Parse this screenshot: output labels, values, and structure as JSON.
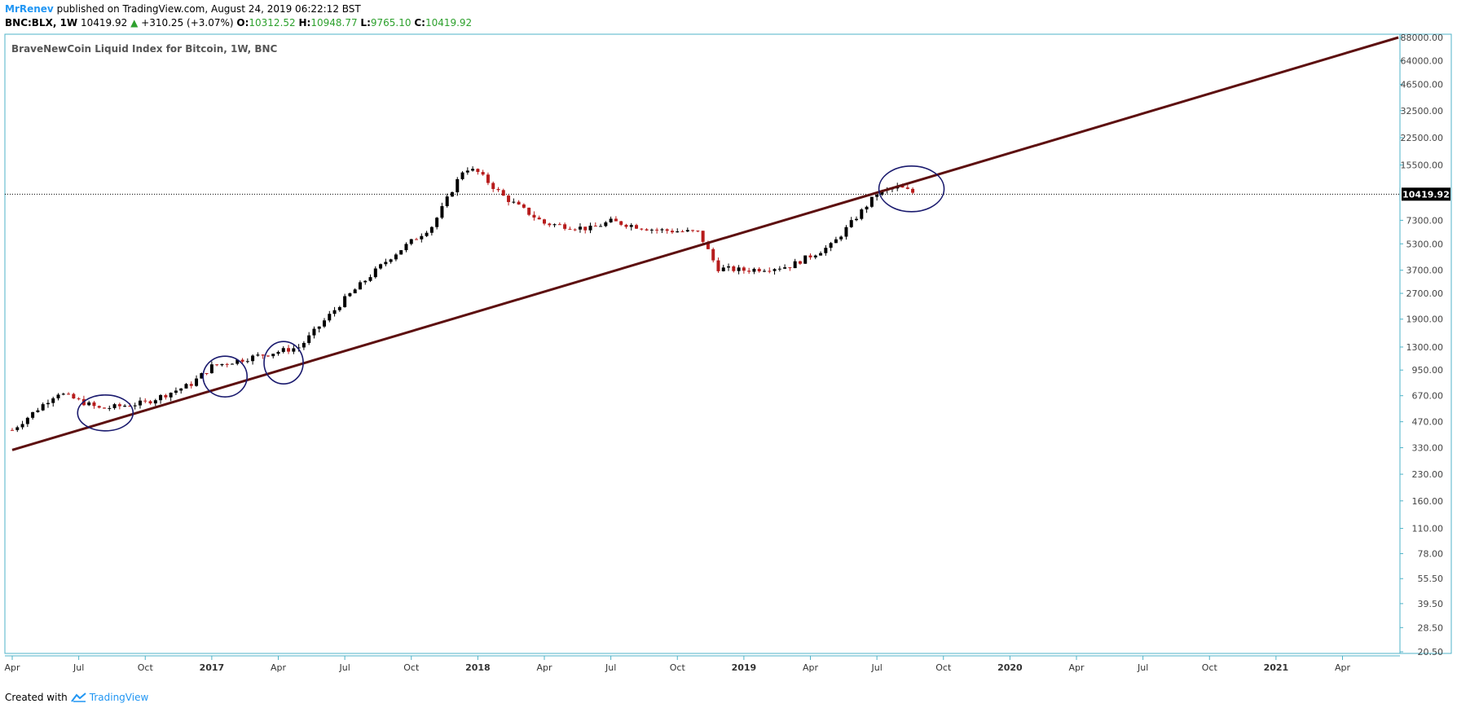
{
  "header": {
    "author": "MrRenev",
    "published": "published on TradingView.com, August 24, 2019 06:22:12 BST",
    "symbol": "BNC:BLX, 1W",
    "last": "10419.92",
    "change": "+310.25 (+3.07%)",
    "o_label": "O:",
    "o_value": "10312.52",
    "h_label": "H:",
    "h_value": "10948.77",
    "l_label": "L:",
    "l_value": "9765.10",
    "c_label": "C:",
    "c_value": "10419.92"
  },
  "footer": {
    "created_with": "Created with",
    "brand": "TradingView"
  },
  "colors": {
    "up": "#000000",
    "down": "#b71c1c",
    "trendline": "#5d0f0f",
    "ellipse": "#1a1a6e",
    "frame": "#4fb3c8",
    "accent": "#2196f3"
  },
  "chart_data": {
    "type": "candlestick",
    "title": "BraveNewCoin Liquid Index for Bitcoin, 1W, BNC",
    "y_scale": "log",
    "last_price_label": "10419.92",
    "y_ticks": [
      "88000.00",
      "64000.00",
      "46500.00",
      "32500.00",
      "22500.00",
      "15500.00",
      "7300.00",
      "5300.00",
      "3700.00",
      "2700.00",
      "1900.00",
      "1300.00",
      "950.00",
      "670.00",
      "470.00",
      "330.00",
      "230.00",
      "160.00",
      "110.00",
      "78.00",
      "55.50",
      "39.50",
      "28.50",
      "20.50"
    ],
    "x_ticks": [
      "Apr",
      "Jul",
      "Oct",
      "2017",
      "Apr",
      "Jul",
      "Oct",
      "2018",
      "Apr",
      "Jul",
      "Oct",
      "2019",
      "Apr",
      "Jul",
      "Oct",
      "2020",
      "Apr",
      "Jul",
      "Oct",
      "2021",
      "Apr"
    ],
    "x_bold_ticks": [
      "2017",
      "2018",
      "2019",
      "2020",
      "2021"
    ],
    "series_path": [
      [
        2016.25,
        420
      ],
      [
        2016.42,
        700
      ],
      [
        2016.58,
        560
      ],
      [
        2016.75,
        610
      ],
      [
        2016.92,
        780
      ],
      [
        2017.0,
        1000
      ],
      [
        2017.17,
        1150
      ],
      [
        2017.33,
        1300
      ],
      [
        2017.5,
        2500
      ],
      [
        2017.67,
        4400
      ],
      [
        2017.83,
        6800
      ],
      [
        2017.95,
        15000
      ],
      [
        2018.0,
        14000
      ],
      [
        2018.1,
        10000
      ],
      [
        2018.25,
        7000
      ],
      [
        2018.42,
        6500
      ],
      [
        2018.5,
        7200
      ],
      [
        2018.67,
        6400
      ],
      [
        2018.83,
        6200
      ],
      [
        2018.9,
        3800
      ],
      [
        2019.0,
        3700
      ],
      [
        2019.17,
        3900
      ],
      [
        2019.33,
        5200
      ],
      [
        2019.5,
        10500
      ],
      [
        2019.58,
        11500
      ],
      [
        2019.65,
        10419.92
      ]
    ],
    "trendline": [
      [
        2016.25,
        320
      ],
      [
        2021.46,
        88000
      ]
    ],
    "ellipses": [
      [
        2016.6,
        530
      ],
      [
        2017.05,
        870
      ],
      [
        2017.27,
        1050
      ],
      [
        2019.63,
        11200
      ]
    ],
    "time_range": [
      2016.25,
      2021.62
    ]
  }
}
